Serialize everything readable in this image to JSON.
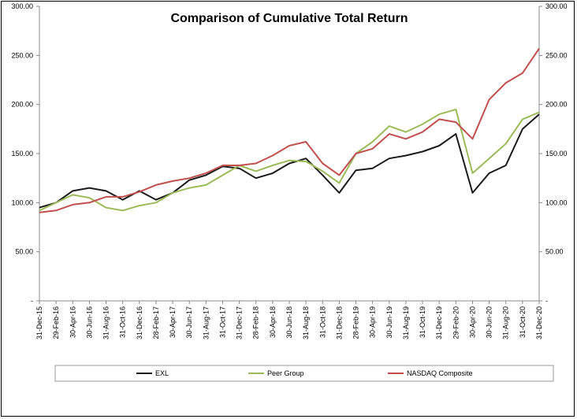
{
  "chart_data": {
    "type": "line",
    "title": "Comparison of Cumulative Total Return",
    "ylim": [
      0,
      300
    ],
    "y_ticks": [
      {
        "value": 0,
        "label": "-"
      },
      {
        "value": 50,
        "label": "50.00"
      },
      {
        "value": 100,
        "label": "100.00"
      },
      {
        "value": 150,
        "label": "150.00"
      },
      {
        "value": 200,
        "label": "200.00"
      },
      {
        "value": 250,
        "label": "250.00"
      },
      {
        "value": 300,
        "label": "300.00"
      }
    ],
    "x_tick_labels": [
      "31-Dec-15",
      "29-Feb-16",
      "30-Apr-16",
      "30-Jun-16",
      "31-Aug-16",
      "31-Oct-16",
      "31-Dec-16",
      "28-Feb-17",
      "30-Apr-17",
      "30-Jun-17",
      "31-Aug-17",
      "31-Oct-17",
      "31-Dec-17",
      "28-Feb-18",
      "30-Apr-18",
      "30-Jun-18",
      "31-Aug-18",
      "31-Oct-18",
      "31-Dec-18",
      "28-Feb-19",
      "30-Apr-19",
      "30-Jun-19",
      "31-Aug-19",
      "31-Oct-19",
      "31-Dec-19",
      "29-Feb-20",
      "30-Apr-20",
      "30-Jun-20",
      "31-Aug-20",
      "31-Oct-20",
      "31-Dec-20"
    ],
    "x": [
      0,
      1,
      2,
      3,
      4,
      5,
      6,
      7,
      8,
      9,
      10,
      11,
      12,
      13,
      14,
      15,
      16,
      17,
      18,
      19,
      20,
      21,
      22,
      23,
      24,
      25,
      26,
      27,
      28,
      29,
      30
    ],
    "series": [
      {
        "name": "EXL",
        "color": "#1a1a1a",
        "values": [
          95,
          100,
          112,
          115,
          112,
          103,
          112,
          103,
          110,
          123,
          128,
          137,
          135,
          125,
          130,
          140,
          145,
          128,
          110,
          133,
          135,
          145,
          148,
          152,
          158,
          170,
          110,
          130,
          138,
          175,
          190
        ]
      },
      {
        "name": "Peer Group",
        "color": "#9bbb59",
        "values": [
          92,
          100,
          108,
          105,
          95,
          92,
          97,
          100,
          110,
          115,
          118,
          128,
          138,
          132,
          138,
          143,
          142,
          132,
          120,
          150,
          162,
          178,
          172,
          180,
          190,
          195,
          130,
          145,
          160,
          185,
          192
        ]
      },
      {
        "name": "NASDAQ Composite",
        "color": "#c0504d",
        "values": [
          90,
          92,
          98,
          100,
          106,
          106,
          111,
          118,
          122,
          125,
          130,
          138,
          138,
          140,
          148,
          158,
          162,
          140,
          128,
          150,
          155,
          170,
          165,
          172,
          185,
          182,
          165,
          205,
          222,
          232,
          257
        ]
      }
    ],
    "legend": [
      "EXL",
      "Peer Group",
      "NASDAQ Composite"
    ],
    "legend_position": "bottom"
  }
}
